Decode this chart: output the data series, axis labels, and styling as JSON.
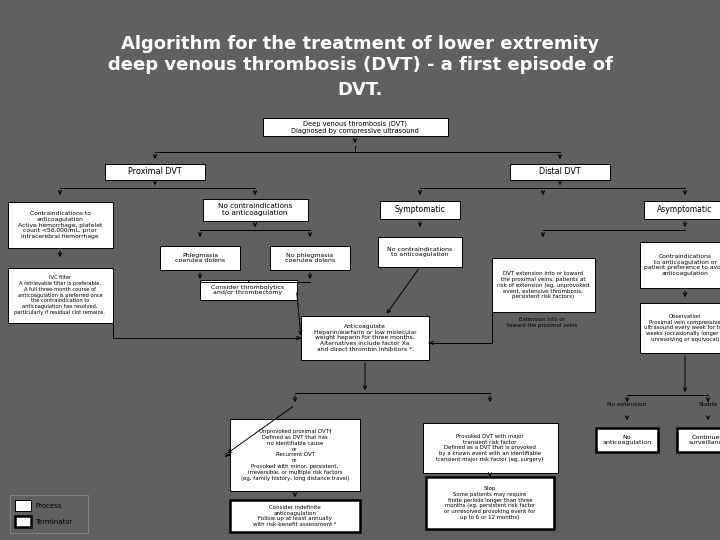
{
  "title_line1": "Algorithm for the treatment of lower extremity",
  "title_line2": "deep venous thrombosis (DVT) - a first episode of",
  "title_line3": "DVT.",
  "title_bg": "#606060",
  "title_color": "#ffffff",
  "flow_bg": "#e8e8e8",
  "box_bg": "#ffffff",
  "box_border": "#000000",
  "arrow_color": "#000000"
}
